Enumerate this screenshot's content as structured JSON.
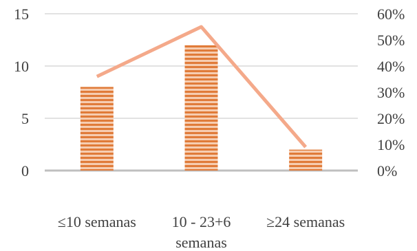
{
  "chart_data": {
    "type": "bar",
    "categories": [
      "≤10 semanas",
      "10 - 23+6 semanas",
      "≥24 semanas"
    ],
    "category_lines": [
      [
        "≤10 semanas"
      ],
      [
        "10 - 23+6",
        "semanas"
      ],
      [
        "≥24 semanas"
      ]
    ],
    "series": [
      {
        "type": "bar",
        "axis": "left",
        "values": [
          8,
          12,
          2
        ],
        "color": "#e07b39",
        "pattern": "horizontal-stripes"
      },
      {
        "type": "line",
        "axis": "right",
        "values": [
          0.36,
          0.55,
          0.09
        ],
        "color": "#f4a98a"
      }
    ],
    "y_left": {
      "min": 0,
      "max": 15,
      "ticks": [
        "0",
        "5",
        "10",
        "15"
      ],
      "tick_values": [
        0,
        5,
        10,
        15
      ]
    },
    "y_right": {
      "min": 0,
      "max": 0.6,
      "ticks": [
        "0%",
        "10%",
        "20%",
        "30%",
        "40%",
        "50%",
        "60%"
      ],
      "tick_values": [
        0,
        0.1,
        0.2,
        0.3,
        0.4,
        0.5,
        0.6
      ]
    },
    "grid": true
  }
}
